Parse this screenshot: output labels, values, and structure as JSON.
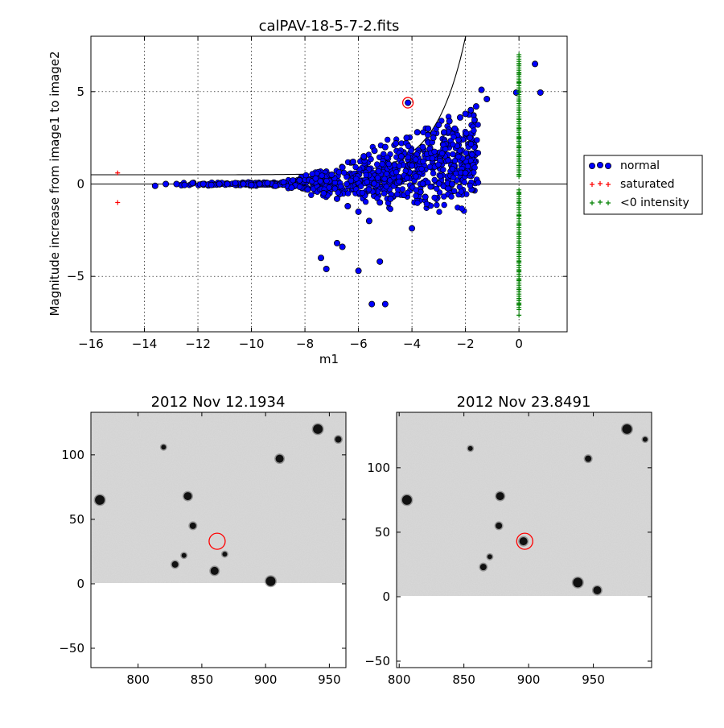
{
  "chart_data": [
    {
      "type": "scatter",
      "title": "calPAV-18-5-7-2.fits",
      "xlabel": "m1",
      "ylabel": "Magnitude increase from image1 to image2",
      "xlim": [
        -16,
        1.8
      ],
      "ylim": [
        -8,
        8
      ],
      "xticks": [
        -16,
        -14,
        -12,
        -10,
        -8,
        -6,
        -4,
        -2,
        0
      ],
      "xtick_labels": [
        "−16",
        "−14",
        "−12",
        "−10",
        "−8",
        "−6",
        "−4",
        "−2",
        "0"
      ],
      "yticks": [
        5,
        0,
        -5
      ],
      "ytick_labels": [
        "5",
        "0",
        "−5"
      ],
      "grid": true,
      "legend_position": "right, outside plot",
      "series": [
        {
          "name": "normal",
          "marker": "circle",
          "color": "#0000ff",
          "points": [
            [
              -13.6,
              -0.1
            ],
            [
              -13.2,
              0.0
            ],
            [
              -12.8,
              0.0
            ],
            [
              -12.5,
              -0.05
            ],
            [
              -12.2,
              0.05
            ],
            [
              -11.8,
              0.0
            ],
            [
              -11.5,
              -0.05
            ],
            [
              -11.2,
              0.0
            ],
            [
              -10.9,
              0.0
            ],
            [
              -10.6,
              0.05
            ],
            [
              -10.3,
              0.0
            ],
            [
              -10.0,
              -0.05
            ],
            [
              -9.7,
              0.0
            ],
            [
              -9.4,
              0.05
            ],
            [
              -9.1,
              -0.1
            ],
            [
              -8.8,
              0.1
            ],
            [
              -8.5,
              -0.2
            ],
            [
              -8.2,
              0.2
            ],
            [
              -7.9,
              -0.3
            ],
            [
              -7.6,
              0.3
            ],
            [
              -7.3,
              -0.5
            ],
            [
              -7.0,
              0.5
            ],
            [
              -6.8,
              -0.8
            ],
            [
              -6.6,
              0.9
            ],
            [
              -6.4,
              -1.2
            ],
            [
              -6.2,
              1.2
            ],
            [
              -6.0,
              -1.5
            ],
            [
              -5.8,
              1.5
            ],
            [
              -5.6,
              -2.0
            ],
            [
              -5.4,
              1.8
            ],
            [
              -5.2,
              -1.0
            ],
            [
              -5.0,
              2.0
            ],
            [
              -4.8,
              -0.8
            ],
            [
              -4.6,
              2.2
            ],
            [
              -4.4,
              1.5
            ],
            [
              -4.2,
              2.5
            ],
            [
              -4.0,
              1.0
            ],
            [
              -3.8,
              2.8
            ],
            [
              -3.6,
              2.0
            ],
            [
              -3.4,
              3.0
            ],
            [
              -3.2,
              2.5
            ],
            [
              -3.0,
              3.2
            ],
            [
              -2.8,
              2.8
            ],
            [
              -2.6,
              3.4
            ],
            [
              -2.4,
              3.0
            ],
            [
              -2.2,
              3.6
            ],
            [
              -2.0,
              3.8
            ],
            [
              -1.8,
              4.0
            ],
            [
              -1.6,
              4.2
            ],
            [
              -1.4,
              5.1
            ],
            [
              -1.2,
              4.6
            ],
            [
              -7.4,
              -4.0
            ],
            [
              -7.2,
              -4.6
            ],
            [
              -6.8,
              -3.2
            ],
            [
              -6.6,
              -3.4
            ],
            [
              -6.0,
              -4.7
            ],
            [
              -5.5,
              -6.5
            ],
            [
              -5.2,
              -4.2
            ],
            [
              -5.0,
              -6.5
            ],
            [
              -4.0,
              -2.4
            ],
            [
              -4.15,
              4.4
            ],
            [
              -0.1,
              4.95
            ],
            [
              0.6,
              6.5
            ],
            [
              0.8,
              4.95
            ],
            [
              -2.0,
              0.6
            ],
            [
              -2.5,
              0.0
            ],
            [
              -3.5,
              -0.7
            ]
          ]
        },
        {
          "name": "saturated",
          "marker": "plus",
          "color": "#ff0000",
          "points": [
            [
              -15.0,
              0.6
            ],
            [
              -15.0,
              -1.0
            ]
          ]
        },
        {
          "name": "<0 intensity",
          "marker": "plus",
          "color": "#008000",
          "points": [
            [
              0,
              7.0
            ],
            [
              0,
              6.5
            ],
            [
              0,
              6.0
            ],
            [
              0,
              5.5
            ],
            [
              0,
              5.0
            ],
            [
              0,
              4.5
            ],
            [
              0,
              4.0
            ],
            [
              0,
              3.5
            ],
            [
              0,
              3.0
            ],
            [
              0,
              2.5
            ],
            [
              0,
              2.0
            ],
            [
              0,
              1.5
            ],
            [
              0,
              1.0
            ],
            [
              0,
              0.5
            ],
            [
              0,
              -0.5
            ],
            [
              0,
              -1.0
            ],
            [
              0,
              -1.7
            ],
            [
              0,
              -2.2
            ],
            [
              0,
              -2.7
            ],
            [
              0,
              -3.2
            ],
            [
              0,
              -3.7
            ],
            [
              0,
              -4.2
            ],
            [
              0,
              -4.7
            ],
            [
              0,
              -5.2
            ],
            [
              0,
              -5.7
            ],
            [
              0,
              -6.2
            ],
            [
              0,
              -6.5
            ],
            [
              0,
              -7.1
            ]
          ]
        }
      ]
    },
    {
      "type": "heatmap",
      "title": "2012 Nov 12.1934",
      "xlim": [
        763,
        963
      ],
      "ylim": [
        -65,
        133
      ],
      "xticks": [
        800,
        850,
        900,
        950
      ],
      "xtick_labels": [
        "800",
        "850",
        "900",
        "950"
      ],
      "yticks": [
        100,
        50,
        0,
        -50
      ],
      "ytick_labels": [
        "100",
        "50",
        "0",
        "−50"
      ],
      "image_extent_y": [
        0,
        133
      ],
      "target_circle": [
        862,
        33
      ],
      "stars": [
        [
          820,
          106
        ],
        [
          941,
          120
        ],
        [
          839,
          68
        ],
        [
          843,
          45
        ],
        [
          836,
          22
        ],
        [
          904,
          2
        ],
        [
          911,
          97
        ],
        [
          957,
          112
        ],
        [
          868,
          23
        ],
        [
          770,
          65
        ],
        [
          860,
          10
        ],
        [
          829,
          15
        ]
      ]
    },
    {
      "type": "heatmap",
      "title": "2012 Nov 23.8491",
      "xlim": [
        798,
        995
      ],
      "ylim": [
        -55,
        143
      ],
      "xticks": [
        800,
        850,
        900,
        950
      ],
      "xtick_labels": [
        "800",
        "850",
        "900",
        "950"
      ],
      "yticks": [
        100,
        50,
        0,
        -50
      ],
      "ytick_labels": [
        "100",
        "50",
        "0",
        "−50"
      ],
      "image_extent_y": [
        0,
        143
      ],
      "target_circle": [
        897,
        43
      ],
      "stars": [
        [
          855,
          115
        ],
        [
          976,
          130
        ],
        [
          878,
          78
        ],
        [
          877,
          55
        ],
        [
          870,
          31
        ],
        [
          938,
          11
        ],
        [
          953,
          5
        ],
        [
          946,
          107
        ],
        [
          990,
          122
        ],
        [
          806,
          75
        ],
        [
          896,
          43
        ],
        [
          865,
          23
        ]
      ]
    }
  ]
}
